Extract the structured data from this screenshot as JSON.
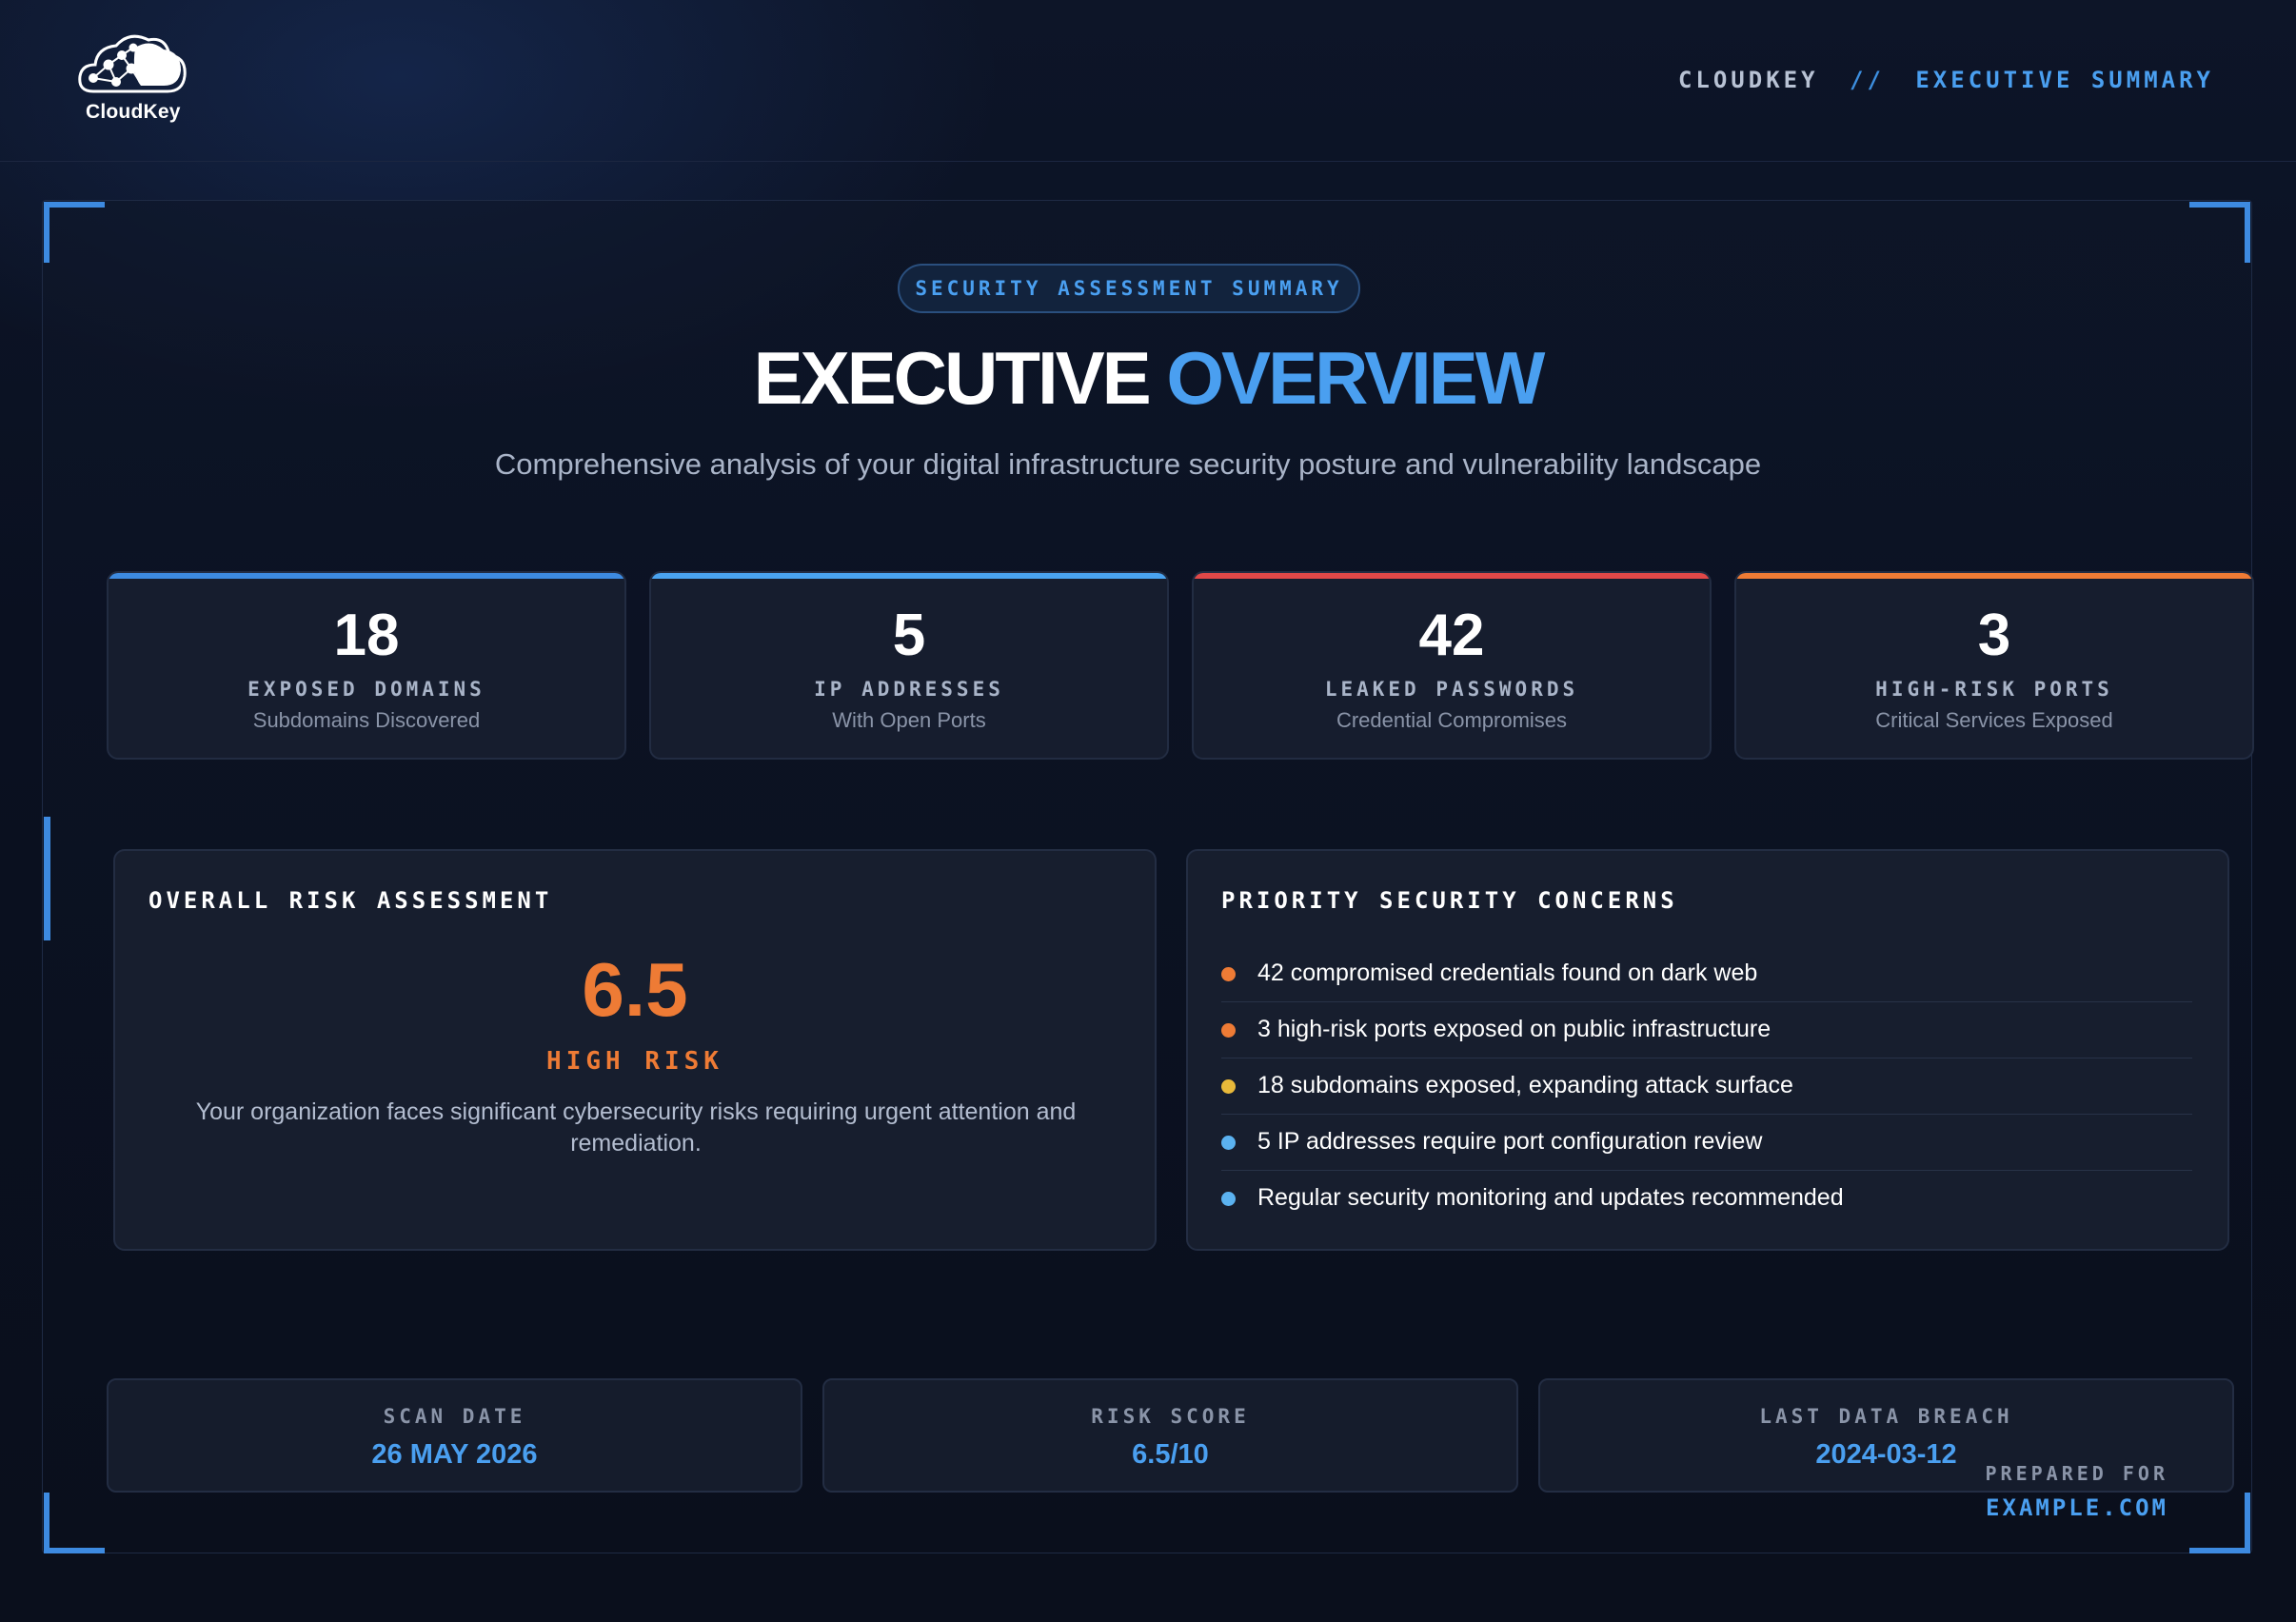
{
  "header": {
    "logo_text": "CloudKey",
    "breadcrumb": {
      "app": "CLOUDKEY",
      "separator": "//",
      "section": "EXECUTIVE SUMMARY"
    }
  },
  "hero": {
    "badge": "SECURITY ASSESSMENT SUMMARY",
    "title_part1": "EXECUTIVE",
    "title_part2": "OVERVIEW",
    "subtitle": "Comprehensive analysis of your digital infrastructure security posture and vulnerability landscape"
  },
  "stats": [
    {
      "value": "18",
      "label": "EXPOSED DOMAINS",
      "sublabel": "Subdomains Discovered",
      "accent": "#3d8ae0"
    },
    {
      "value": "5",
      "label": "IP ADDRESSES",
      "sublabel": "With Open Ports",
      "accent": "#4aa3f0"
    },
    {
      "value": "42",
      "label": "LEAKED PASSWORDS",
      "sublabel": "Credential Compromises",
      "accent": "#e04848"
    },
    {
      "value": "3",
      "label": "HIGH-RISK PORTS",
      "sublabel": "Critical Services Exposed",
      "accent": "#ee7b35"
    }
  ],
  "risk": {
    "title": "OVERALL RISK ASSESSMENT",
    "score": "6.5",
    "level": "HIGH RISK",
    "description": "Your organization faces significant cybersecurity risks requiring urgent attention and remediation.",
    "color": "#ee7b35"
  },
  "concerns": {
    "title": "PRIORITY SECURITY CONCERNS",
    "items": [
      {
        "text": "42 compromised credentials found on dark web",
        "color": "#ee7b35"
      },
      {
        "text": "3 high-risk ports exposed on public infrastructure",
        "color": "#ee7b35"
      },
      {
        "text": "18 subdomains exposed, expanding attack surface",
        "color": "#e8b93a"
      },
      {
        "text": "5 IP addresses require port configuration review",
        "color": "#5bb2f0"
      },
      {
        "text": "Regular security monitoring and updates recommended",
        "color": "#5bb2f0"
      }
    ]
  },
  "meta": [
    {
      "label": "SCAN DATE",
      "value": "26 MAY 2026"
    },
    {
      "label": "RISK SCORE",
      "value": "6.5/10"
    },
    {
      "label": "LAST DATA BREACH",
      "value": "2024-03-12"
    }
  ],
  "prepared": {
    "label": "PREPARED FOR",
    "value": "EXAMPLE.COM"
  }
}
